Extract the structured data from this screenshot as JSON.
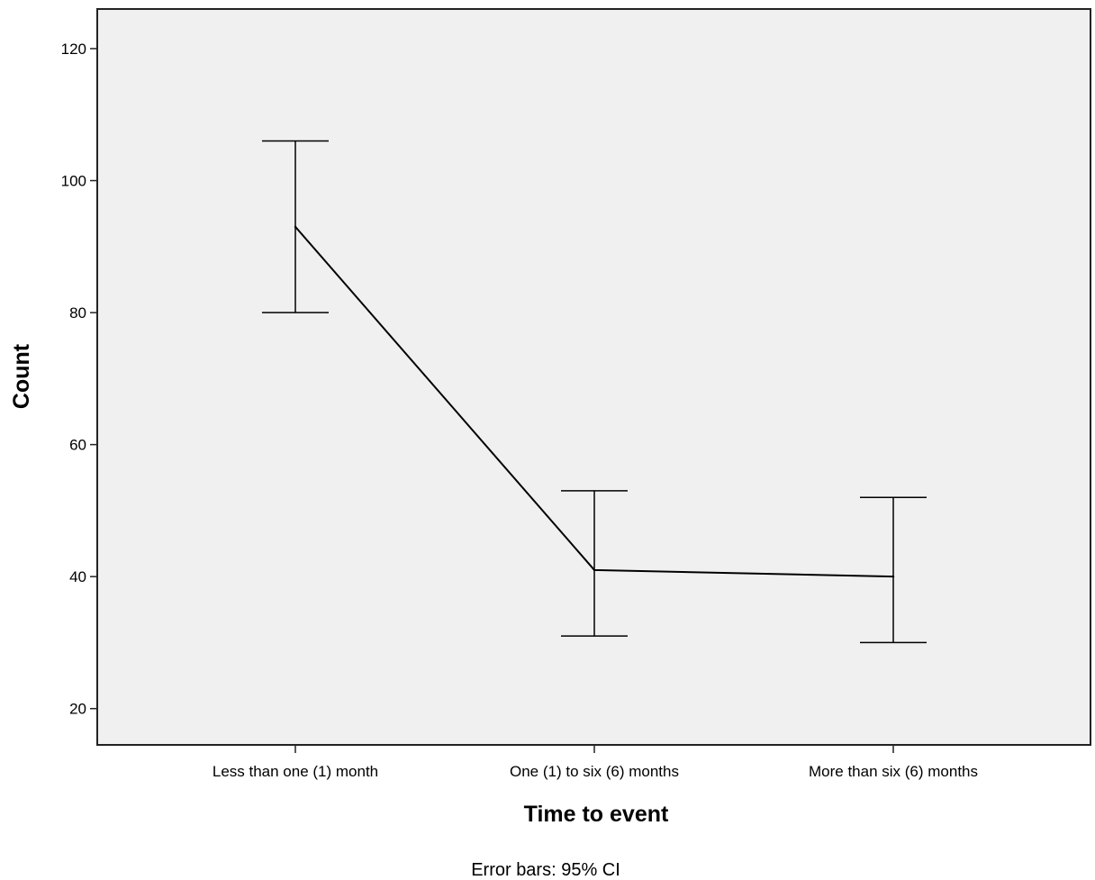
{
  "chart_data": {
    "type": "line",
    "title": "",
    "xlabel": "Time to event",
    "ylabel": "Count",
    "categories": [
      "Less than one (1) month",
      "One (1) to six (6) months",
      "More than six (6) months"
    ],
    "series": [
      {
        "values": [
          93,
          41,
          40
        ],
        "ci_lower": [
          80,
          31,
          30
        ],
        "ci_upper": [
          106,
          53,
          52
        ]
      }
    ],
    "ylim": [
      14.5,
      126
    ],
    "yticks": [
      20,
      40,
      60,
      80,
      100,
      120
    ],
    "grid": false,
    "footnote": "Error bars: 95% CI",
    "colors": {
      "plot_background": "#f0f0f0",
      "line": "#000000",
      "axis": "#222222"
    }
  }
}
